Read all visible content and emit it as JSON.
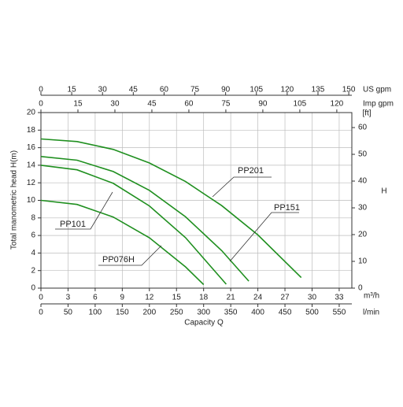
{
  "chart_data": {
    "type": "line",
    "x_label": "Capacity Q",
    "y_label": "Total manometric head H(m)",
    "y2_label": "H",
    "y2_unit": "[ft]",
    "x_unit": "m³/h",
    "xlim": [
      0,
      34.4
    ],
    "xticks": [
      0,
      3,
      6,
      9,
      12,
      15,
      18,
      21,
      24,
      27,
      30,
      33
    ],
    "ylim": [
      0,
      20
    ],
    "yticks": [
      0,
      2,
      4,
      6,
      8,
      10,
      12,
      14,
      16,
      18,
      20
    ],
    "y2lim": [
      0,
      65.6
    ],
    "y2ticks": [
      0,
      10,
      20,
      30,
      40,
      50,
      60
    ],
    "grid": true,
    "color": "#1f8f1f",
    "x_axes": [
      {
        "label": "l/min",
        "side": "bottom",
        "xlim": [
          0,
          573.3
        ],
        "xticks": [
          0,
          50,
          100,
          150,
          200,
          250,
          300,
          350,
          400,
          450,
          500,
          550
        ]
      },
      {
        "label": "US gpm",
        "side": "top",
        "xlim": [
          0,
          151.5
        ],
        "xticks": [
          0,
          15,
          30,
          45,
          60,
          75,
          90,
          105,
          120,
          135,
          150
        ]
      },
      {
        "label": "Imp gpm",
        "side": "top",
        "xlim": [
          0,
          126.1
        ],
        "xticks": [
          0,
          15,
          30,
          45,
          60,
          75,
          90,
          105,
          120
        ]
      }
    ],
    "series": [
      {
        "name": "PP201",
        "x": [
          0,
          4,
          8,
          12,
          16,
          20,
          24,
          28.8
        ],
        "values": [
          17,
          16.7,
          15.8,
          14.26,
          12.14,
          9.4,
          6.06,
          1.2
        ]
      },
      {
        "name": "PP151",
        "x": [
          0,
          4,
          8,
          12,
          16,
          20,
          23
        ],
        "values": [
          15,
          14.57,
          13.28,
          11.14,
          8.13,
          4.27,
          0.8
        ]
      },
      {
        "name": "PP101",
        "x": [
          0,
          4,
          8,
          12,
          16,
          20.5
        ],
        "values": [
          14,
          13.48,
          11.94,
          9.36,
          5.75,
          0.45
        ]
      },
      {
        "name": "PP076H",
        "x": [
          0,
          4,
          8,
          12,
          16,
          18
        ],
        "values": [
          10,
          9.53,
          8.1,
          5.74,
          2.42,
          0.4
        ]
      }
    ]
  }
}
